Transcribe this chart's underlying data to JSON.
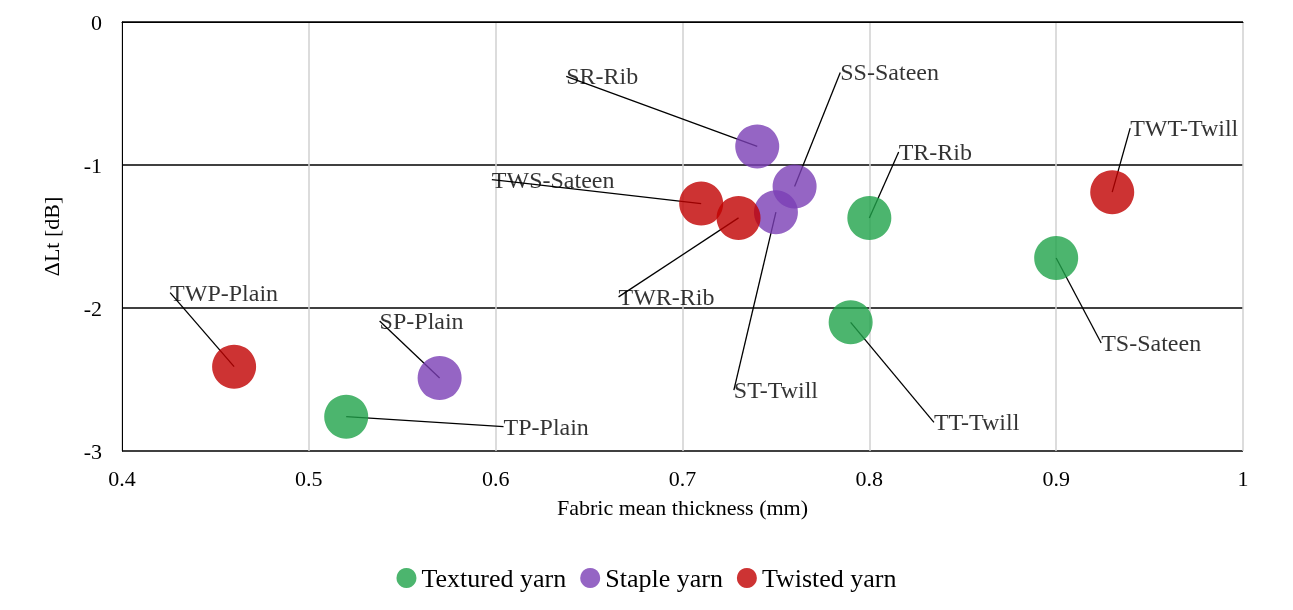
{
  "chart_data": {
    "type": "scatter",
    "xlabel": "Fabric mean thickness (mm)",
    "ylabel": "ΔLt [dB]",
    "xlim": [
      0.4,
      1
    ],
    "xticks": [
      0.4,
      0.5,
      0.6,
      0.7,
      0.8,
      0.9,
      1
    ],
    "ylim": [
      -3,
      0
    ],
    "yticks": [
      -3,
      -2,
      -1,
      0
    ],
    "grid": true,
    "legend": "bottom",
    "marker": "circle",
    "series": [
      {
        "name": "Textured yarn",
        "color": "#1fa34a",
        "x": [
          0.52,
          0.8,
          0.79,
          0.9
        ],
        "values": [
          -2.76,
          -1.37,
          -2.1,
          -1.65
        ]
      },
      {
        "name": "Staple yarn",
        "color": "#7b3fb5",
        "x": [
          0.57,
          0.74,
          0.75,
          0.76
        ],
        "values": [
          -2.49,
          -0.87,
          -1.33,
          -1.15
        ]
      },
      {
        "name": "Twisted yarn",
        "color": "#c00000",
        "x": [
          0.46,
          0.73,
          0.93,
          0.71
        ],
        "values": [
          -2.41,
          -1.37,
          -1.19,
          -1.27
        ]
      }
    ],
    "annotations": [
      {
        "text": "TWP-Plain",
        "x": 0.46,
        "y": -2.41
      },
      {
        "text": "SP-Plain",
        "x": 0.57,
        "y": -2.49
      },
      {
        "text": "TP-Plain",
        "x": 0.52,
        "y": -2.76
      },
      {
        "text": "SR-Rib",
        "x": 0.74,
        "y": -0.87
      },
      {
        "text": "SS-Sateen",
        "x": 0.76,
        "y": -1.15
      },
      {
        "text": "TWS-Sateen",
        "x": 0.71,
        "y": -1.27
      },
      {
        "text": "TWR-Rib",
        "x": 0.73,
        "y": -1.37
      },
      {
        "text": "ST-Twill",
        "x": 0.75,
        "y": -1.33
      },
      {
        "text": "TR-Rib",
        "x": 0.8,
        "y": -1.37
      },
      {
        "text": "TWT-Twill",
        "x": 0.93,
        "y": -1.19
      },
      {
        "text": "TS-Sateen",
        "x": 0.9,
        "y": -1.65
      },
      {
        "text": "TT-Twill",
        "x": 0.79,
        "y": -2.1
      }
    ]
  }
}
